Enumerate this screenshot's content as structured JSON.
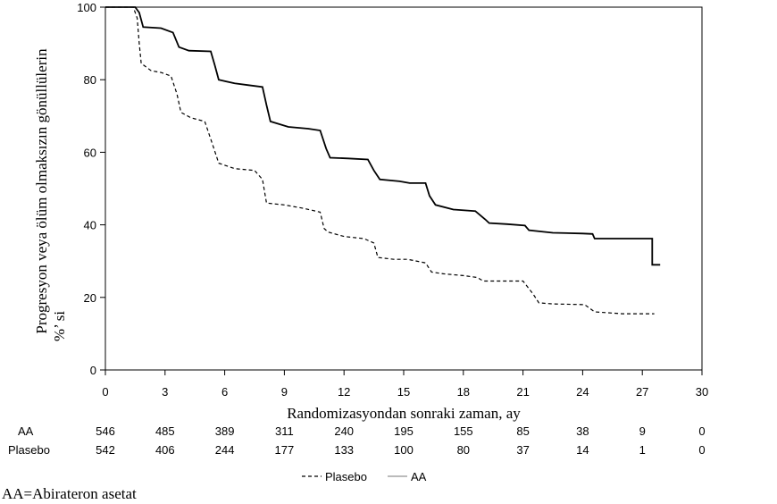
{
  "chart_data": {
    "type": "line",
    "xlabel": "Randomizasyondan sonraki zaman, ay",
    "ylabel_line1": "Progresyon veya ölüm olmaksızın gönüllülerin",
    "ylabel_line2": "%’ si",
    "xlim": [
      0,
      30
    ],
    "ylim": [
      0,
      100
    ],
    "x_ticks": [
      "0",
      "3",
      "6",
      "9",
      "12",
      "15",
      "18",
      "21",
      "24",
      "27",
      "30"
    ],
    "y_ticks": [
      "0",
      "20",
      "40",
      "60",
      "80",
      "100"
    ],
    "grid": false,
    "legend_position": "bottom-center",
    "legend": [
      {
        "label": "Plasebo",
        "style": "dashed"
      },
      {
        "label": "AA",
        "style": "solid"
      }
    ],
    "series": [
      {
        "name": "AA",
        "style": "solid",
        "color": "#000000",
        "points": [
          [
            0,
            100
          ],
          [
            1.5,
            100
          ],
          [
            1.7,
            98.5
          ],
          [
            1.9,
            94.5
          ],
          [
            2.8,
            94.2
          ],
          [
            3.4,
            93
          ],
          [
            3.7,
            89
          ],
          [
            4.2,
            88
          ],
          [
            5.3,
            87.8
          ],
          [
            5.5,
            84
          ],
          [
            5.7,
            80
          ],
          [
            6.5,
            79
          ],
          [
            7.2,
            78.5
          ],
          [
            7.9,
            78
          ],
          [
            8.1,
            73
          ],
          [
            8.3,
            68.5
          ],
          [
            9.2,
            67
          ],
          [
            10.2,
            66.5
          ],
          [
            10.8,
            66
          ],
          [
            11.1,
            61
          ],
          [
            11.3,
            58.5
          ],
          [
            12.2,
            58.3
          ],
          [
            13.2,
            58
          ],
          [
            13.5,
            55
          ],
          [
            13.8,
            52.5
          ],
          [
            14.8,
            52
          ],
          [
            15.3,
            51.5
          ],
          [
            16.1,
            51.5
          ],
          [
            16.3,
            48
          ],
          [
            16.6,
            45.5
          ],
          [
            17.5,
            44.2
          ],
          [
            18.6,
            43.8
          ],
          [
            19.1,
            41.5
          ],
          [
            19.3,
            40.5
          ],
          [
            20.2,
            40.2
          ],
          [
            21.1,
            39.8
          ],
          [
            21.3,
            38.5
          ],
          [
            22.5,
            37.8
          ],
          [
            24.0,
            37.6
          ],
          [
            24.5,
            37.5
          ],
          [
            24.6,
            36.2
          ],
          [
            26.2,
            36.2
          ],
          [
            27.5,
            36.2
          ],
          [
            27.5,
            29
          ],
          [
            27.9,
            29
          ]
        ]
      },
      {
        "name": "Plasebo",
        "style": "dashed",
        "color": "#000000",
        "points": [
          [
            0,
            100
          ],
          [
            1.4,
            100
          ],
          [
            1.6,
            97
          ],
          [
            1.7,
            90
          ],
          [
            1.8,
            84.5
          ],
          [
            2.3,
            82.5
          ],
          [
            2.8,
            82
          ],
          [
            3.3,
            81
          ],
          [
            3.6,
            76
          ],
          [
            3.8,
            71
          ],
          [
            4.3,
            69.5
          ],
          [
            5.0,
            68.5
          ],
          [
            5.4,
            62
          ],
          [
            5.7,
            57
          ],
          [
            6.5,
            55.5
          ],
          [
            7.5,
            55
          ],
          [
            7.9,
            52.5
          ],
          [
            8.1,
            46
          ],
          [
            9.0,
            45.5
          ],
          [
            10.0,
            44.5
          ],
          [
            10.8,
            43.5
          ],
          [
            11.0,
            39
          ],
          [
            11.2,
            38
          ],
          [
            12.0,
            36.8
          ],
          [
            13.0,
            36.2
          ],
          [
            13.5,
            35
          ],
          [
            13.7,
            31
          ],
          [
            14.5,
            30.5
          ],
          [
            15.2,
            30.5
          ],
          [
            16.1,
            29.5
          ],
          [
            16.4,
            27
          ],
          [
            17.0,
            26.5
          ],
          [
            18.0,
            26
          ],
          [
            18.7,
            25.5
          ],
          [
            19.0,
            24.5
          ],
          [
            20.0,
            24.5
          ],
          [
            21.0,
            24.5
          ],
          [
            21.5,
            21
          ],
          [
            21.8,
            18.5
          ],
          [
            22.5,
            18.2
          ],
          [
            24.1,
            18
          ],
          [
            24.6,
            16
          ],
          [
            26.0,
            15.5
          ],
          [
            27.6,
            15.5
          ]
        ]
      }
    ],
    "risk_table": {
      "x": [
        0,
        3,
        6,
        9,
        12,
        15,
        18,
        21,
        24,
        27,
        30
      ],
      "rows": [
        {
          "label": "AA",
          "values": [
            "546",
            "485",
            "389",
            "311",
            "240",
            "195",
            "155",
            "85",
            "38",
            "9",
            "0"
          ]
        },
        {
          "label": "Plasebo",
          "values": [
            "542",
            "406",
            "244",
            "177",
            "133",
            "100",
            "80",
            "37",
            "14",
            "1",
            "0"
          ]
        }
      ]
    },
    "footnote": "AA=Abirateron asetat"
  }
}
